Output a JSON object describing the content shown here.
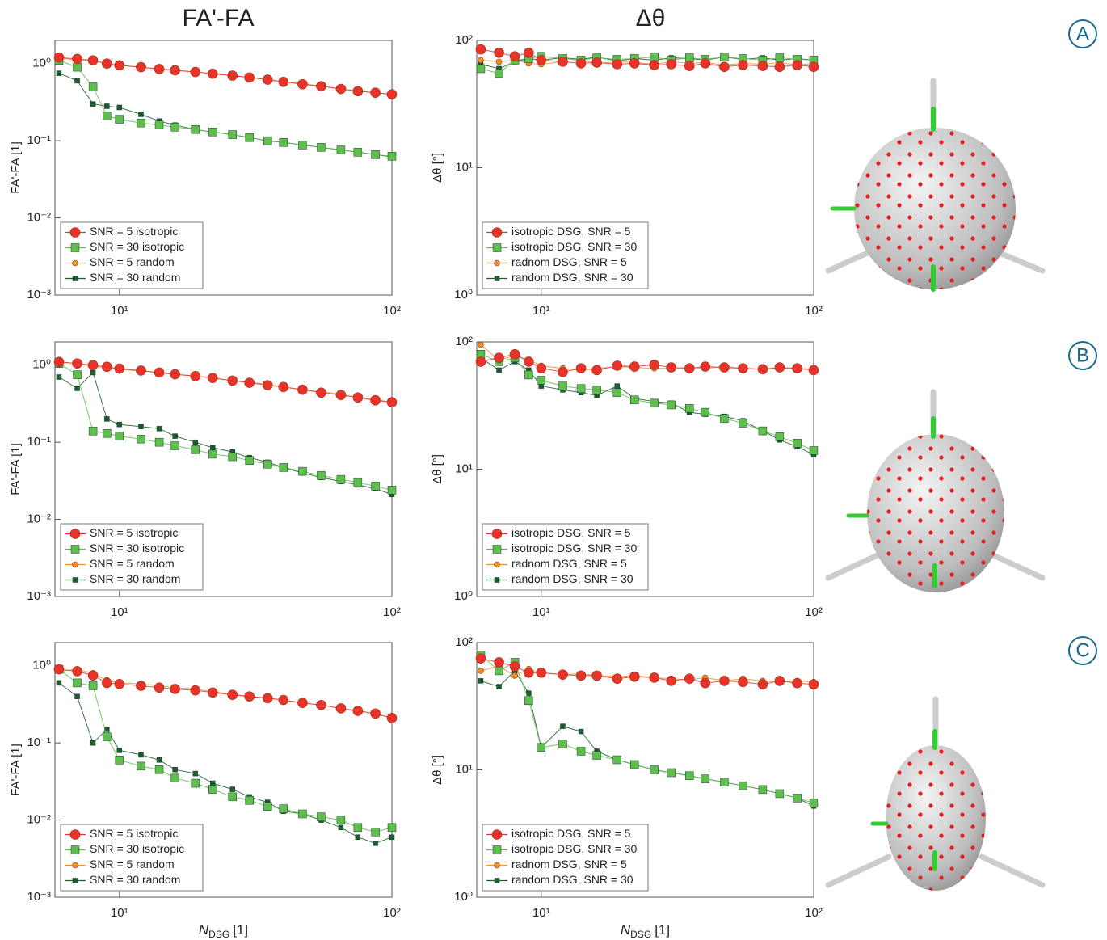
{
  "columns": [
    "FA'-FA",
    "Δθ"
  ],
  "panels": [
    "A",
    "B",
    "C"
  ],
  "chart_data": [
    {
      "type": "line",
      "xscale": "log",
      "yscale": "log",
      "ylabel": "FA'-FA [1]",
      "legend": "lower left",
      "xlim": [
        5.8,
        100
      ],
      "xticks": [
        {
          "value": 10,
          "label": "10¹"
        },
        {
          "value": 100,
          "label": "10²"
        }
      ],
      "ylim": [
        0.001,
        2
      ],
      "yticks": [
        {
          "value": 0.001,
          "label": "10⁻³"
        },
        {
          "value": 0.01,
          "label": "10⁻²"
        },
        {
          "value": 0.1,
          "label": "10⁻¹"
        },
        {
          "value": 1,
          "label": "10⁰"
        }
      ],
      "x": [
        6,
        7,
        8,
        9,
        10,
        12,
        14,
        16,
        19,
        22,
        26,
        30,
        35,
        40,
        47,
        55,
        65,
        75,
        87,
        100
      ],
      "series": [
        {
          "name": "SNR = 5 isotropic",
          "color": "#e8332a",
          "marker": "circle",
          "size": 12,
          "values": [
            1.2,
            1.15,
            1.1,
            1.0,
            0.95,
            0.9,
            0.85,
            0.82,
            0.78,
            0.74,
            0.7,
            0.66,
            0.62,
            0.58,
            0.54,
            0.51,
            0.47,
            0.44,
            0.42,
            0.4
          ]
        },
        {
          "name": "SNR = 30 isotropic",
          "color": "#5ec04a",
          "marker": "square",
          "size": 10,
          "values": [
            1.1,
            0.9,
            0.5,
            0.21,
            0.19,
            0.17,
            0.16,
            0.15,
            0.14,
            0.13,
            0.12,
            0.11,
            0.1,
            0.095,
            0.088,
            0.082,
            0.076,
            0.071,
            0.066,
            0.063
          ]
        },
        {
          "name": "SNR = 5 random",
          "color": "#f0902a",
          "marker": "circle",
          "size": 7,
          "values": [
            1.2,
            1.1,
            1.1,
            1.0,
            0.95,
            0.9,
            0.86,
            0.82,
            0.78,
            0.74,
            0.7,
            0.66,
            0.62,
            0.58,
            0.55,
            0.51,
            0.47,
            0.44,
            0.42,
            0.4
          ]
        },
        {
          "name": "SNR = 30 random",
          "color": "#1a5e2a",
          "marker": "square",
          "size": 6,
          "values": [
            0.75,
            0.6,
            0.3,
            0.28,
            0.27,
            0.22,
            0.18,
            0.16,
            0.14,
            0.13,
            0.12,
            0.11,
            0.1,
            0.095,
            0.088,
            0.082,
            0.076,
            0.071,
            0.066,
            0.062
          ]
        }
      ]
    },
    {
      "type": "line",
      "xscale": "log",
      "yscale": "log",
      "ylabel": "Δθ [°]",
      "legend": "lower left",
      "xlim": [
        5.8,
        100
      ],
      "xticks": [
        {
          "value": 10,
          "label": "10¹"
        },
        {
          "value": 100,
          "label": "10²"
        }
      ],
      "ylim": [
        1,
        100
      ],
      "yticks": [
        {
          "value": 1,
          "label": "10⁰"
        },
        {
          "value": 10,
          "label": "10¹"
        },
        {
          "value": 100,
          "label": "10²"
        }
      ],
      "x": [
        6,
        7,
        8,
        9,
        10,
        12,
        14,
        16,
        19,
        22,
        26,
        30,
        35,
        40,
        47,
        55,
        65,
        75,
        87,
        100
      ],
      "series": [
        {
          "name": "isotropic DSG, SNR = 5",
          "color": "#e8332a",
          "marker": "circle",
          "size": 12,
          "values": [
            85,
            80,
            75,
            80,
            70,
            68,
            66,
            67,
            65,
            66,
            64,
            65,
            63,
            66,
            62,
            64,
            63,
            62,
            64,
            62
          ]
        },
        {
          "name": "isotropic DSG, SNR = 30",
          "color": "#5ec04a",
          "marker": "square",
          "size": 10,
          "values": [
            60,
            55,
            70,
            72,
            75,
            72,
            70,
            73,
            71,
            72,
            74,
            70,
            73,
            71,
            74,
            72,
            70,
            73,
            71,
            70
          ]
        },
        {
          "name": "radnom DSG, SNR = 5",
          "color": "#f0902a",
          "marker": "circle",
          "size": 7,
          "values": [
            70,
            68,
            70,
            66,
            65,
            68,
            70,
            66,
            68,
            67,
            65,
            68,
            66,
            67,
            64,
            66,
            65,
            67,
            64,
            66
          ]
        },
        {
          "name": "random DSG, SNR = 30",
          "color": "#1a5e2a",
          "marker": "square",
          "size": 6,
          "values": [
            65,
            60,
            68,
            72,
            70,
            73,
            71,
            74,
            69,
            72,
            70,
            73,
            72,
            70,
            74,
            71,
            73,
            70,
            72,
            70
          ]
        }
      ]
    },
    {
      "type": "line",
      "xscale": "log",
      "yscale": "log",
      "ylabel": "FA'-FA [1]",
      "legend": "lower left",
      "xlim": [
        5.8,
        100
      ],
      "xticks": [
        {
          "value": 10,
          "label": "10¹"
        },
        {
          "value": 100,
          "label": "10²"
        }
      ],
      "ylim": [
        0.001,
        2
      ],
      "yticks": [
        {
          "value": 0.001,
          "label": "10⁻³"
        },
        {
          "value": 0.01,
          "label": "10⁻²"
        },
        {
          "value": 0.1,
          "label": "10⁻¹"
        },
        {
          "value": 1,
          "label": "10⁰"
        }
      ],
      "x": [
        6,
        7,
        8,
        9,
        10,
        12,
        14,
        16,
        19,
        22,
        26,
        30,
        35,
        40,
        47,
        55,
        65,
        75,
        87,
        100
      ],
      "series": [
        {
          "name": "SNR = 5 isotropic",
          "color": "#e8332a",
          "marker": "circle",
          "size": 12,
          "values": [
            1.1,
            1.05,
            1.0,
            0.95,
            0.9,
            0.85,
            0.8,
            0.76,
            0.72,
            0.68,
            0.63,
            0.59,
            0.55,
            0.52,
            0.48,
            0.44,
            0.41,
            0.38,
            0.35,
            0.33
          ]
        },
        {
          "name": "SNR = 30 isotropic",
          "color": "#5ec04a",
          "marker": "square",
          "size": 10,
          "values": [
            1.05,
            0.75,
            0.14,
            0.13,
            0.12,
            0.11,
            0.1,
            0.09,
            0.08,
            0.07,
            0.065,
            0.058,
            0.052,
            0.047,
            0.042,
            0.037,
            0.033,
            0.03,
            0.027,
            0.024
          ]
        },
        {
          "name": "SNR = 5 random",
          "color": "#f0902a",
          "marker": "circle",
          "size": 7,
          "values": [
            1.1,
            1.05,
            0.95,
            0.95,
            0.88,
            0.84,
            0.8,
            0.76,
            0.72,
            0.68,
            0.63,
            0.6,
            0.56,
            0.52,
            0.48,
            0.45,
            0.42,
            0.38,
            0.36,
            0.33
          ]
        },
        {
          "name": "SNR = 30 random",
          "color": "#1a5e2a",
          "marker": "square",
          "size": 6,
          "values": [
            0.7,
            0.5,
            0.8,
            0.2,
            0.17,
            0.16,
            0.15,
            0.12,
            0.1,
            0.085,
            0.075,
            0.063,
            0.055,
            0.047,
            0.04,
            0.035,
            0.031,
            0.028,
            0.025,
            0.021
          ]
        }
      ]
    },
    {
      "type": "line",
      "xscale": "log",
      "yscale": "log",
      "ylabel": "Δθ [°]",
      "legend": "lower left",
      "xlim": [
        5.8,
        100
      ],
      "xticks": [
        {
          "value": 10,
          "label": "10¹"
        },
        {
          "value": 100,
          "label": "10²"
        }
      ],
      "ylim": [
        1,
        100
      ],
      "yticks": [
        {
          "value": 1,
          "label": "10⁰"
        },
        {
          "value": 10,
          "label": "10¹"
        },
        {
          "value": 100,
          "label": "10²"
        }
      ],
      "x": [
        6,
        7,
        8,
        9,
        10,
        12,
        14,
        16,
        19,
        22,
        26,
        30,
        35,
        40,
        47,
        55,
        65,
        75,
        87,
        100
      ],
      "series": [
        {
          "name": "isotropic DSG, SNR = 5",
          "color": "#e8332a",
          "marker": "circle",
          "size": 12,
          "values": [
            70,
            75,
            80,
            70,
            62,
            58,
            62,
            60,
            65,
            64,
            66,
            63,
            62,
            64,
            63,
            62,
            61,
            63,
            62,
            60
          ]
        },
        {
          "name": "isotropic DSG, SNR = 30",
          "color": "#5ec04a",
          "marker": "square",
          "size": 10,
          "values": [
            80,
            70,
            75,
            55,
            50,
            45,
            43,
            42,
            40,
            35,
            33,
            32,
            30,
            28,
            25,
            23,
            20,
            18,
            16,
            14
          ]
        },
        {
          "name": "radnom DSG, SNR = 5",
          "color": "#f0902a",
          "marker": "circle",
          "size": 7,
          "values": [
            95,
            72,
            78,
            72,
            65,
            62,
            60,
            62,
            64,
            63,
            62,
            62,
            63,
            62,
            64,
            62,
            61,
            62,
            62,
            61
          ]
        },
        {
          "name": "random DSG, SNR = 30",
          "color": "#1a5e2a",
          "marker": "square",
          "size": 6,
          "values": [
            75,
            60,
            70,
            60,
            45,
            42,
            40,
            38,
            45,
            36,
            34,
            33,
            28,
            27,
            26,
            24,
            20,
            17,
            15,
            13
          ]
        }
      ]
    },
    {
      "type": "line",
      "xscale": "log",
      "yscale": "log",
      "ylabel": "FA'-FA [1]",
      "xlabel": {
        "symbol": "N",
        "subscript": "DSG",
        "unit": "[1]"
      },
      "legend": "lower left",
      "xlim": [
        5.8,
        100
      ],
      "xticks": [
        {
          "value": 10,
          "label": "10¹"
        },
        {
          "value": 100,
          "label": "10²"
        }
      ],
      "ylim": [
        0.001,
        2
      ],
      "yticks": [
        {
          "value": 0.001,
          "label": "10⁻³"
        },
        {
          "value": 0.01,
          "label": "10⁻²"
        },
        {
          "value": 0.1,
          "label": "10⁻¹"
        },
        {
          "value": 1,
          "label": "10⁰"
        }
      ],
      "x": [
        6,
        7,
        8,
        9,
        10,
        12,
        14,
        16,
        19,
        22,
        26,
        30,
        35,
        40,
        47,
        55,
        65,
        75,
        87,
        100
      ],
      "series": [
        {
          "name": "SNR = 5 isotropic",
          "color": "#e8332a",
          "marker": "circle",
          "size": 12,
          "values": [
            0.9,
            0.85,
            0.75,
            0.6,
            0.58,
            0.55,
            0.52,
            0.5,
            0.48,
            0.45,
            0.42,
            0.4,
            0.38,
            0.36,
            0.33,
            0.31,
            0.28,
            0.26,
            0.24,
            0.21
          ]
        },
        {
          "name": "SNR = 30 isotropic",
          "color": "#5ec04a",
          "marker": "square",
          "size": 10,
          "values": [
            0.9,
            0.6,
            0.55,
            0.12,
            0.06,
            0.05,
            0.045,
            0.035,
            0.03,
            0.025,
            0.02,
            0.018,
            0.015,
            0.014,
            0.012,
            0.011,
            0.01,
            0.008,
            0.007,
            0.008
          ]
        },
        {
          "name": "SNR = 5 random",
          "color": "#f0902a",
          "marker": "circle",
          "size": 7,
          "values": [
            0.85,
            0.9,
            0.8,
            0.65,
            0.6,
            0.58,
            0.55,
            0.52,
            0.5,
            0.46,
            0.43,
            0.4,
            0.38,
            0.36,
            0.33,
            0.31,
            0.28,
            0.26,
            0.24,
            0.21
          ]
        },
        {
          "name": "SNR = 30 random",
          "color": "#1a5e2a",
          "marker": "square",
          "size": 6,
          "values": [
            0.6,
            0.4,
            0.1,
            0.15,
            0.08,
            0.07,
            0.06,
            0.045,
            0.04,
            0.03,
            0.025,
            0.02,
            0.017,
            0.013,
            0.012,
            0.01,
            0.008,
            0.006,
            0.005,
            0.006
          ]
        }
      ]
    },
    {
      "type": "line",
      "xscale": "log",
      "yscale": "log",
      "ylabel": "Δθ [°]",
      "xlabel": {
        "symbol": "N",
        "subscript": "DSG",
        "unit": "[1]"
      },
      "legend": "lower left",
      "xlim": [
        5.8,
        100
      ],
      "xticks": [
        {
          "value": 10,
          "label": "10¹"
        },
        {
          "value": 100,
          "label": "10²"
        }
      ],
      "ylim": [
        1,
        100
      ],
      "yticks": [
        {
          "value": 1,
          "label": "10⁰"
        },
        {
          "value": 10,
          "label": "10¹"
        },
        {
          "value": 100,
          "label": "10²"
        }
      ],
      "x": [
        6,
        7,
        8,
        9,
        10,
        12,
        14,
        16,
        19,
        22,
        26,
        30,
        35,
        40,
        47,
        55,
        65,
        75,
        87,
        100
      ],
      "series": [
        {
          "name": "isotropic DSG, SNR = 5",
          "color": "#e8332a",
          "marker": "circle",
          "size": 12,
          "values": [
            75,
            70,
            65,
            58,
            58,
            56,
            55,
            55,
            52,
            54,
            53,
            50,
            52,
            48,
            50,
            49,
            47,
            50,
            48,
            47
          ]
        },
        {
          "name": "isotropic DSG, SNR = 30",
          "color": "#5ec04a",
          "marker": "square",
          "size": 10,
          "values": [
            80,
            60,
            70,
            35,
            15,
            16,
            14,
            13,
            12,
            11,
            10,
            9.5,
            9,
            8.5,
            8,
            7.5,
            7,
            6.5,
            6,
            5.5
          ]
        },
        {
          "name": "radnom DSG, SNR = 5",
          "color": "#f0902a",
          "marker": "circle",
          "size": 7,
          "values": [
            60,
            65,
            55,
            62,
            58,
            56,
            57,
            55,
            54,
            55,
            53,
            52,
            51,
            53,
            50,
            52,
            50,
            49,
            50,
            49
          ]
        },
        {
          "name": "random DSG, SNR = 30",
          "color": "#1a5e2a",
          "marker": "square",
          "size": 6,
          "values": [
            50,
            45,
            60,
            40,
            15,
            22,
            20,
            14,
            12,
            11,
            10,
            9.5,
            9,
            8.5,
            8,
            7.5,
            7,
            6.5,
            6,
            5.2
          ]
        }
      ]
    }
  ]
}
